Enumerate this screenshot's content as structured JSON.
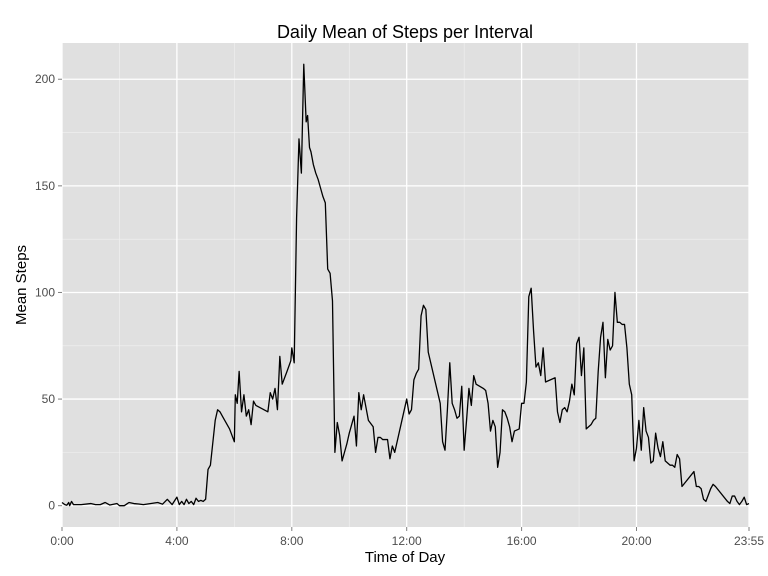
{
  "chart_data": {
    "type": "line",
    "title": "Daily Mean of Steps per Interval",
    "xlabel": "Time of Day",
    "ylabel": "Mean Steps",
    "xlim_minutes": [
      0,
      1435
    ],
    "ylim": [
      -10,
      217
    ],
    "x_ticks": [
      {
        "label": "0:00",
        "value": 0
      },
      {
        "label": "4:00",
        "value": 240
      },
      {
        "label": "8:00",
        "value": 480
      },
      {
        "label": "12:00",
        "value": 720
      },
      {
        "label": "16:00",
        "value": 960
      },
      {
        "label": "20:00",
        "value": 1200
      },
      {
        "label": "23:55",
        "value": 1435
      }
    ],
    "y_ticks": [
      0,
      50,
      100,
      150,
      200
    ],
    "grid": true,
    "background_color": "#e0e0e0",
    "grid_color": "#ffffff",
    "line_color": "#000000",
    "series": [
      {
        "x": [
          0,
          6,
          10,
          14,
          16,
          20,
          24,
          30,
          40,
          60,
          70,
          80,
          90,
          100,
          115,
          120,
          130,
          140,
          150,
          160,
          170,
          200,
          210,
          220,
          230,
          240,
          245,
          250,
          255,
          260,
          265,
          270,
          275,
          280,
          285,
          290,
          295,
          300,
          305,
          310,
          320,
          325,
          330,
          335,
          340,
          345,
          350,
          355,
          360,
          362,
          366,
          370,
          375,
          380,
          385,
          390,
          395,
          400,
          405,
          430,
          435,
          440,
          445,
          450,
          455,
          460,
          470,
          478,
          480,
          485,
          490,
          495,
          500,
          505,
          510,
          513,
          517,
          520,
          525,
          530,
          535,
          540,
          545,
          550,
          555,
          560,
          565,
          570,
          575,
          580,
          585,
          590,
          595,
          600,
          605,
          610,
          615,
          620,
          625,
          630,
          640,
          650,
          655,
          660,
          665,
          670,
          675,
          680,
          685,
          690,
          695,
          720,
          725,
          730,
          735,
          740,
          745,
          750,
          755,
          760,
          765,
          790,
          795,
          800,
          805,
          810,
          815,
          820,
          825,
          830,
          835,
          840,
          845,
          850,
          855,
          860,
          865,
          880,
          885,
          890,
          895,
          900,
          905,
          910,
          915,
          920,
          925,
          930,
          935,
          940,
          945,
          955,
          960,
          965,
          970,
          975,
          980,
          985,
          990,
          995,
          1000,
          1005,
          1010,
          1030,
          1035,
          1040,
          1045,
          1050,
          1055,
          1060,
          1065,
          1070,
          1075,
          1080,
          1085,
          1090,
          1095,
          1100,
          1105,
          1110,
          1115,
          1120,
          1125,
          1130,
          1135,
          1140,
          1145,
          1150,
          1155,
          1160,
          1165,
          1170,
          1175,
          1180,
          1185,
          1190,
          1195,
          1200,
          1205,
          1210,
          1215,
          1220,
          1225,
          1230,
          1235,
          1240,
          1245,
          1250,
          1255,
          1260,
          1265,
          1270,
          1275,
          1280,
          1285,
          1290,
          1295,
          1320,
          1325,
          1330,
          1335,
          1340,
          1345,
          1350,
          1355,
          1360,
          1365,
          1390,
          1395,
          1400,
          1405,
          1410,
          1415,
          1420,
          1425,
          1430,
          1435
        ],
        "values": [
          1.5,
          0.5,
          0.2,
          1.5,
          0,
          2,
          0.5,
          0.5,
          0.5,
          1,
          0.5,
          0.5,
          1.5,
          0.3,
          1,
          0,
          0,
          1.5,
          1,
          0.8,
          0.5,
          1.5,
          0.7,
          3,
          0.5,
          4,
          0.5,
          2,
          0.5,
          3,
          1,
          2,
          0.5,
          3.5,
          2,
          2.5,
          2,
          3,
          17,
          19,
          40,
          45,
          44,
          42,
          40,
          38,
          36,
          33,
          30,
          52,
          48,
          63,
          44,
          52,
          42,
          45,
          38,
          49,
          47,
          44,
          53,
          50,
          55,
          45,
          70,
          57,
          63,
          68,
          74,
          67,
          135,
          172,
          156,
          207,
          180,
          183,
          168,
          166,
          160,
          156,
          153,
          149,
          145,
          142,
          111,
          109,
          96,
          25,
          39,
          33,
          21,
          25,
          29,
          34,
          38,
          42,
          28,
          53,
          45,
          52,
          40,
          37,
          25,
          32,
          32,
          31,
          31,
          31,
          22,
          28,
          25,
          50,
          43,
          45,
          59,
          62,
          64,
          89,
          94,
          92,
          72,
          48,
          30,
          26,
          45,
          67,
          48,
          45,
          41,
          42,
          56,
          26,
          40,
          55,
          47,
          61,
          57,
          55,
          54,
          48,
          35,
          40,
          37,
          18,
          25,
          45,
          44,
          41,
          37,
          30,
          35,
          36,
          48,
          48,
          58,
          98,
          102,
          82,
          65,
          67,
          61,
          74,
          58,
          60,
          44,
          39,
          45,
          46,
          44,
          49,
          57,
          52,
          76,
          79,
          61,
          74,
          36,
          37,
          38,
          40,
          41,
          63,
          79,
          86,
          60,
          78,
          73,
          75,
          100,
          86,
          86,
          85,
          85,
          74,
          57,
          52,
          21,
          27,
          40,
          26,
          46,
          35,
          32,
          20,
          21,
          34,
          27,
          23,
          30,
          21,
          20,
          19,
          19,
          18,
          24,
          22,
          9,
          16,
          9,
          9,
          8,
          3,
          2,
          5,
          8,
          10,
          9,
          2,
          1,
          4.5,
          4.5,
          2,
          0.5,
          2,
          4,
          0.5,
          1
        ]
      }
    ]
  }
}
